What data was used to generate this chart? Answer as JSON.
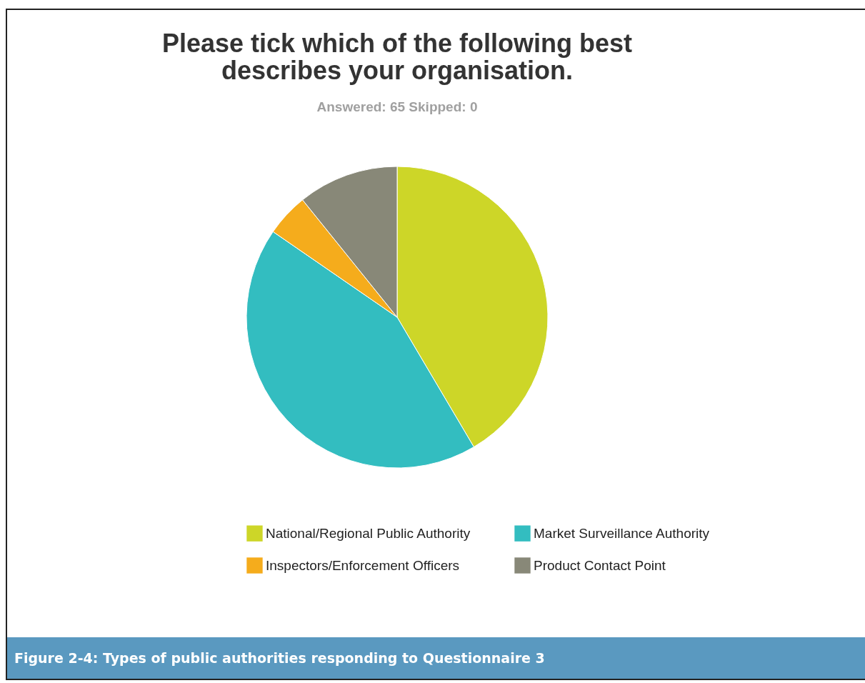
{
  "chart_data": {
    "type": "pie",
    "title": "Please tick which of the following best describes your organisation.",
    "subtitle": "Answered: 65     Skipped: 0",
    "categories": [
      "National/Regional Public Authority",
      "Market Surveillance Authority",
      "Inspectors/Enforcement Officers",
      "Product Contact Point"
    ],
    "values": [
      41.5,
      43.1,
      4.6,
      10.8
    ],
    "colors": [
      "#cdd628",
      "#33bdc0",
      "#f5ac1c",
      "#888878"
    ],
    "legend": "bottom",
    "annotations": [
      "Figure 2-4: Types of public authorities responding to Questionnaire 3"
    ]
  }
}
